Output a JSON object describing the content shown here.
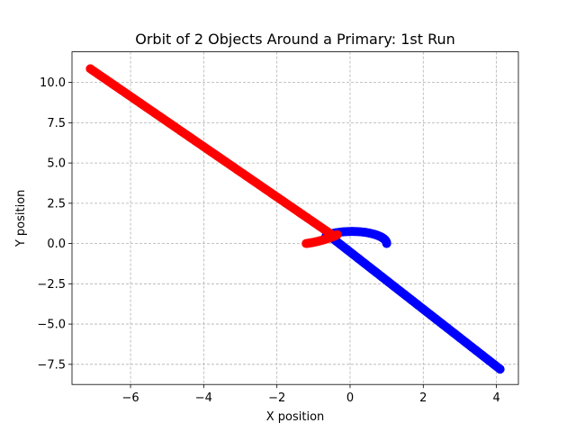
{
  "chart_data": {
    "type": "scatter",
    "title": "Orbit of 2 Objects Around a Primary: 1st Run",
    "xlabel": "X position",
    "ylabel": "Y position",
    "xlim": [
      -7.6,
      4.6
    ],
    "ylim": [
      -8.75,
      11.9
    ],
    "grid": true,
    "x_ticks": [
      -6,
      -4,
      -2,
      0,
      2,
      4
    ],
    "x_tick_labels": [
      "−6",
      "−4",
      "−2",
      "0",
      "2",
      "4"
    ],
    "y_ticks": [
      -7.5,
      -5.0,
      -2.5,
      0.0,
      2.5,
      5.0,
      7.5,
      10.0
    ],
    "y_tick_labels": [
      "−7.5",
      "−5.0",
      "−2.5",
      "0.0",
      "2.5",
      "5.0",
      "7.5",
      "10.0"
    ],
    "series": [
      {
        "color": "#0000ff",
        "arc": {
          "start_x": 1.0,
          "start_y": 0.0,
          "radius": 1.0,
          "end_angle_deg": 138
        },
        "line": {
          "from": [
            -0.55,
            0.45
          ],
          "to": [
            4.1,
            -7.8
          ]
        }
      },
      {
        "color": "#ff0000",
        "arc": {
          "start_x": -1.2,
          "start_y": 0.0,
          "radius": 1.2,
          "end_angle_deg": -25
        },
        "line": {
          "from": [
            -0.5,
            0.55
          ],
          "to": [
            -7.1,
            10.85
          ]
        }
      }
    ]
  }
}
